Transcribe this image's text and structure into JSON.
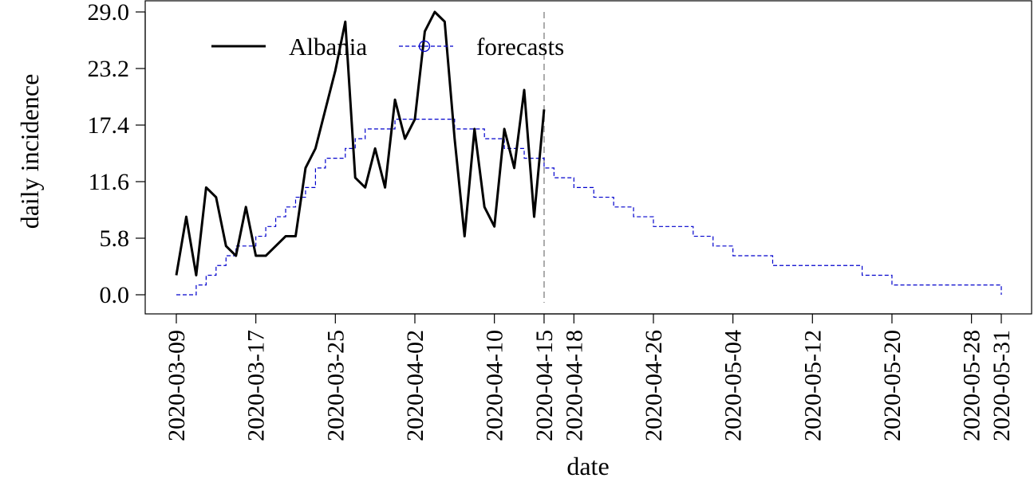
{
  "chart_data": {
    "type": "line",
    "xlabel": "date",
    "ylabel": "daily incidence",
    "ylim": [
      0,
      29
    ],
    "y_ticks": [
      "0.0",
      "5.8",
      "11.6",
      "17.4",
      "23.2",
      "29.0"
    ],
    "x_ticks": [
      "2020-03-09",
      "2020-03-17",
      "2020-03-25",
      "2020-04-02",
      "2020-04-10",
      "2020-04-15",
      "2020-04-18",
      "2020-04-26",
      "2020-05-04",
      "2020-05-12",
      "2020-05-20",
      "2020-05-28",
      "2020-05-31"
    ],
    "x_range": [
      "2020-03-09",
      "2020-05-31"
    ],
    "grid": false,
    "legend_position": "top-left",
    "forecast_start_marker": "2020-04-15",
    "series": [
      {
        "name": "Albania",
        "style": "solid",
        "color": "#000000",
        "x": [
          "2020-03-09",
          "2020-03-10",
          "2020-03-11",
          "2020-03-12",
          "2020-03-13",
          "2020-03-14",
          "2020-03-15",
          "2020-03-16",
          "2020-03-17",
          "2020-03-18",
          "2020-03-19",
          "2020-03-20",
          "2020-03-21",
          "2020-03-22",
          "2020-03-23",
          "2020-03-24",
          "2020-03-25",
          "2020-03-26",
          "2020-03-27",
          "2020-03-28",
          "2020-03-29",
          "2020-03-30",
          "2020-03-31",
          "2020-04-01",
          "2020-04-02",
          "2020-04-03",
          "2020-04-04",
          "2020-04-05",
          "2020-04-06",
          "2020-04-07",
          "2020-04-08",
          "2020-04-09",
          "2020-04-10",
          "2020-04-11",
          "2020-04-12",
          "2020-04-13",
          "2020-04-14",
          "2020-04-15"
        ],
        "values": [
          2,
          8,
          2,
          11,
          10,
          5,
          4,
          9,
          4,
          4,
          5,
          6,
          6,
          13,
          15,
          19,
          23,
          28,
          12,
          11,
          15,
          11,
          20,
          16,
          18,
          27,
          29,
          28,
          16,
          6,
          17,
          9,
          7,
          17,
          13,
          21,
          8,
          19
        ]
      },
      {
        "name": "forecasts",
        "style": "dashed-step",
        "color": "#0000cc",
        "x": [
          "2020-03-09",
          "2020-03-10",
          "2020-03-11",
          "2020-03-12",
          "2020-03-13",
          "2020-03-14",
          "2020-03-15",
          "2020-03-16",
          "2020-03-17",
          "2020-03-18",
          "2020-03-19",
          "2020-03-20",
          "2020-03-21",
          "2020-03-22",
          "2020-03-23",
          "2020-03-24",
          "2020-03-25",
          "2020-03-26",
          "2020-03-27",
          "2020-03-28",
          "2020-03-29",
          "2020-03-30",
          "2020-03-31",
          "2020-04-01",
          "2020-04-02",
          "2020-04-03",
          "2020-04-04",
          "2020-04-05",
          "2020-04-06",
          "2020-04-07",
          "2020-04-08",
          "2020-04-09",
          "2020-04-10",
          "2020-04-11",
          "2020-04-12",
          "2020-04-13",
          "2020-04-14",
          "2020-04-15",
          "2020-04-16",
          "2020-04-18",
          "2020-04-20",
          "2020-04-22",
          "2020-04-24",
          "2020-04-26",
          "2020-04-28",
          "2020-04-30",
          "2020-05-02",
          "2020-05-04",
          "2020-05-08",
          "2020-05-12",
          "2020-05-17",
          "2020-05-20",
          "2020-05-30",
          "2020-05-31"
        ],
        "values": [
          0,
          0,
          1,
          2,
          3,
          4,
          5,
          5,
          6,
          7,
          8,
          9,
          10,
          11,
          13,
          14,
          14,
          15,
          16,
          17,
          17,
          17,
          18,
          18,
          18,
          18,
          18,
          18,
          17,
          17,
          17,
          16,
          16,
          15,
          15,
          14,
          14,
          13,
          12,
          11,
          10,
          9,
          8,
          7,
          7,
          6,
          5,
          4,
          3,
          3,
          2,
          1,
          1,
          0
        ]
      }
    ]
  },
  "legend": {
    "items": [
      {
        "label": "Albania",
        "color": "#000000"
      },
      {
        "label": "forecasts",
        "color": "#0000cc"
      }
    ]
  },
  "colors": {
    "observed": "#000000",
    "forecast": "#0000cc",
    "forecast_marker": "#aaaaaa",
    "frame": "#000000"
  }
}
